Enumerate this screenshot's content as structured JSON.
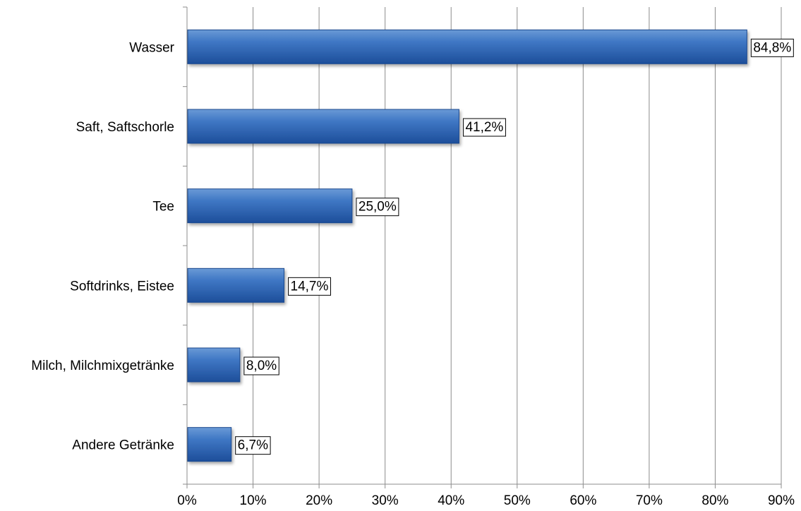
{
  "chart_data": {
    "type": "bar",
    "orientation": "horizontal",
    "categories": [
      "Wasser",
      "Saft, Saftschorle",
      "Tee",
      "Softdrinks, Eistee",
      "Milch, Milchmixgetränke",
      "Andere Getränke"
    ],
    "values": [
      84.8,
      41.2,
      25.0,
      14.7,
      8.0,
      6.7
    ],
    "data_labels": [
      "84,8%",
      "41,2%",
      "25,0%",
      "14,7%",
      "8,0%",
      "6,7%"
    ],
    "x_ticks": [
      0,
      10,
      20,
      30,
      40,
      50,
      60,
      70,
      80,
      90
    ],
    "x_tick_labels": [
      "0%",
      "10%",
      "20%",
      "30%",
      "40%",
      "50%",
      "60%",
      "70%",
      "80%",
      "90%"
    ],
    "xlim": [
      0,
      90
    ],
    "title": "",
    "xlabel": "",
    "ylabel": "",
    "grid": "vertical",
    "legend": "none",
    "colors": {
      "bar_light": "#6a9ad6",
      "bar_mid": "#3f77c4",
      "bar_dark": "#1d4e9a",
      "bar_edge": "#1c4a8f",
      "grid": "#8c8c8c",
      "axis": "#8c8c8c"
    }
  }
}
